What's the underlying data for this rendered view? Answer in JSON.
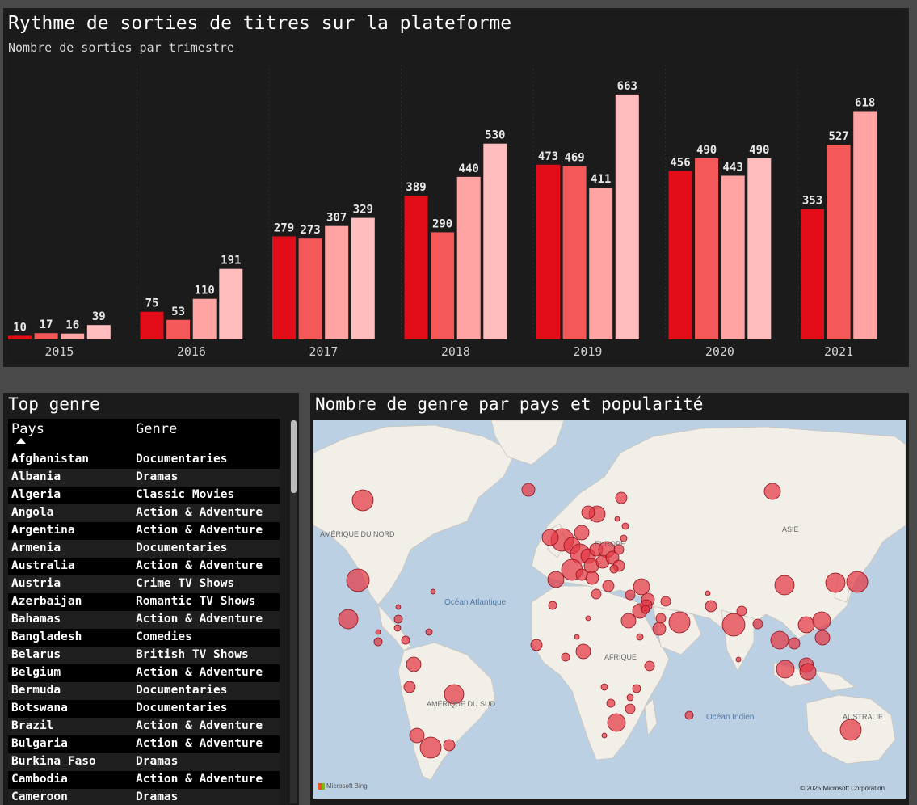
{
  "colors": {
    "q1": "#e20d18",
    "q2": "#f55858",
    "q3": "#ffa3a3",
    "q4": "#ffbdbd",
    "label": "#e8e8e8",
    "bubble": "#e53844",
    "land": "#f2efe9",
    "water": "#bcd0e3"
  },
  "chart": {
    "title": "Rythme de sorties de titres sur la plateforme",
    "subtitle": "Nombre de sorties par trimestre"
  },
  "chart_data": {
    "type": "bar",
    "title": "Rythme de sorties de titres sur la plateforme",
    "subtitle": "Nombre de sorties par trimestre",
    "categories": [
      "2015",
      "2016",
      "2017",
      "2018",
      "2019",
      "2020",
      "2021"
    ],
    "series": [
      {
        "values": [
          10,
          75,
          279,
          389,
          473,
          456,
          353
        ]
      },
      {
        "values": [
          17,
          53,
          273,
          290,
          469,
          490,
          527
        ]
      },
      {
        "values": [
          16,
          110,
          307,
          440,
          411,
          443,
          618
        ]
      },
      {
        "values": [
          39,
          191,
          329,
          530,
          663,
          490,
          null
        ]
      }
    ],
    "ylim": [
      0,
      700
    ],
    "grid": false,
    "data_labels": true
  },
  "genre_table": {
    "title": "Top genre",
    "columns": [
      "Pays",
      "Genre"
    ],
    "rows": [
      [
        "Afghanistan",
        "Documentaries"
      ],
      [
        "Albania",
        "Dramas"
      ],
      [
        "Algeria",
        "Classic Movies"
      ],
      [
        "Angola",
        "Action & Adventure"
      ],
      [
        "Argentina",
        "Action & Adventure"
      ],
      [
        "Armenia",
        "Documentaries"
      ],
      [
        "Australia",
        "Action & Adventure"
      ],
      [
        "Austria",
        "Crime TV Shows"
      ],
      [
        "Azerbaijan",
        "Romantic TV Shows"
      ],
      [
        "Bahamas",
        "Action & Adventure"
      ],
      [
        "Bangladesh",
        "Comedies"
      ],
      [
        "Belarus",
        "British TV Shows"
      ],
      [
        "Belgium",
        "Action & Adventure"
      ],
      [
        "Bermuda",
        "Documentaries"
      ],
      [
        "Botswana",
        "Documentaries"
      ],
      [
        "Brazil",
        "Action & Adventure"
      ],
      [
        "Bulgaria",
        "Action & Adventure"
      ],
      [
        "Burkina Faso",
        "Dramas"
      ],
      [
        "Cambodia",
        "Action & Adventure"
      ],
      [
        "Cameroon",
        "Dramas"
      ]
    ]
  },
  "map": {
    "title": "Nombre de genre par pays et popularité",
    "labels": {
      "north_america": "AMÉRIQUE DU NORD",
      "south_america": "AMÉRIQUE DU SUD",
      "europe": "EUROPE",
      "africa": "AFRIQUE",
      "asia": "ASIE",
      "australia": "AUSTRALIE",
      "atlantic": "Océan Atlantique",
      "indian": "Océan Indien"
    },
    "logo": "Microsoft Bing",
    "copyright": "© 2025 Microsoft Corporation"
  }
}
